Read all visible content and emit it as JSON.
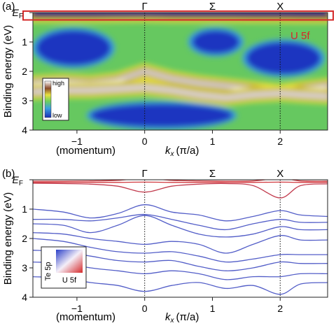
{
  "chart_data": [
    {
      "type": "heatmap",
      "panel_label": "(a)",
      "title": "",
      "xlabel_prefix": "(momentum)",
      "xlabel": "k",
      "xlabel_sub": "x",
      "xlabel_unit": "(π/a)",
      "ylabel": "Binding energy (eV)",
      "xlim": [
        -1.65,
        2.7
      ],
      "ylim": [
        4,
        0
      ],
      "xticks": [
        -1,
        0,
        1,
        2
      ],
      "xtick_labels": [
        "−1",
        "0",
        "1",
        "2"
      ],
      "yticks": [
        0,
        1,
        2,
        3,
        4
      ],
      "ytick_labels": [
        "E_F",
        "1",
        "2",
        "3",
        "4"
      ],
      "high_symbol_points": [
        {
          "label": "Γ",
          "x": 0,
          "dotted_line": true
        },
        {
          "label": "Σ",
          "x": 1,
          "dotted_line": false
        },
        {
          "label": "X",
          "x": 2,
          "dotted_line": true
        }
      ],
      "colorbar": {
        "top_label": "high",
        "bottom_label": "low",
        "placement": "lower-left"
      },
      "annotation": {
        "text": "U 5f",
        "color": "#d42a2a",
        "box_energy_range": [
          -0.05,
          0.25
        ],
        "placement": "right"
      },
      "grid": false,
      "intensity_bands": [
        {
          "name": "near-EF flat band",
          "x": [
            -1.65,
            -1.2,
            -0.8,
            -0.4,
            0,
            0.4,
            0.8,
            1.2,
            1.6,
            2.0,
            2.3,
            2.7
          ],
          "y": [
            0.08,
            0.08,
            0.08,
            0.07,
            0.06,
            0.08,
            0.08,
            0.08,
            0.09,
            0.09,
            0.1,
            0.1
          ],
          "intensity": 0.78
        },
        {
          "name": "Te 5p upper band",
          "x": [
            -1.65,
            -1.2,
            -0.8,
            -0.4,
            0,
            0.4,
            0.8,
            1.2,
            1.6,
            2.0,
            2.3,
            2.7
          ],
          "y": [
            2.4,
            2.35,
            2.4,
            2.3,
            2.0,
            2.25,
            2.4,
            2.5,
            2.6,
            2.7,
            2.6,
            2.5
          ],
          "intensity": 0.85
        },
        {
          "name": "Te 5p lower band",
          "x": [
            -1.65,
            -1.2,
            -0.8,
            -0.4,
            0,
            0.4,
            0.8,
            1.2,
            1.6,
            2.0,
            2.3,
            2.7
          ],
          "y": [
            2.7,
            2.65,
            2.65,
            2.6,
            2.55,
            2.65,
            2.8,
            2.9,
            2.8,
            2.75,
            2.8,
            2.85
          ],
          "intensity": 1.0
        }
      ],
      "low_intensity_regions": [
        {
          "x": [
            -1.6,
            -0.5
          ],
          "y": [
            0.6,
            1.8
          ]
        },
        {
          "x": [
            0.7,
            1.4
          ],
          "y": [
            0.6,
            1.4
          ]
        },
        {
          "x": [
            1.5,
            2.6
          ],
          "y": [
            1.0,
            2.1
          ]
        },
        {
          "x": [
            -0.8,
            1.3
          ],
          "y": [
            3.1,
            3.9
          ]
        }
      ]
    },
    {
      "type": "line",
      "panel_label": "(b)",
      "title": "",
      "xlabel_prefix": "(momentum)",
      "xlabel": "k",
      "xlabel_sub": "x",
      "xlabel_unit": "(π/a)",
      "ylabel": "Binding energy (eV)",
      "xlim": [
        -1.65,
        2.7
      ],
      "ylim": [
        4,
        0
      ],
      "xticks": [
        -1,
        0,
        1,
        2
      ],
      "xtick_labels": [
        "−1",
        "0",
        "1",
        "2"
      ],
      "yticks": [
        0,
        1,
        2,
        3,
        4
      ],
      "ytick_labels": [
        "E_F",
        "1",
        "2",
        "3",
        "4"
      ],
      "high_symbol_points": [
        {
          "label": "Γ",
          "x": 0,
          "dotted_line": true
        },
        {
          "label": "Σ",
          "x": 1,
          "dotted_line": false
        },
        {
          "label": "X",
          "x": 2,
          "dotted_line": true
        }
      ],
      "legend": {
        "y_axis_label": "Te 5p",
        "x_axis_label": "U 5f",
        "placement": "lower-left",
        "colors": [
          "#3a5ad6",
          "#d62a2a"
        ]
      },
      "grid": false,
      "x": [
        -1.65,
        -1.2,
        -0.8,
        -0.4,
        0,
        0.4,
        0.8,
        1.2,
        1.6,
        2.0,
        2.3,
        2.7
      ],
      "series": [
        {
          "u5f_weight": 0.95,
          "y": [
            0.05,
            0.05,
            0.04,
            0.02,
            -0.05,
            0.02,
            0.04,
            0.05,
            0.04,
            -0.05,
            0.04,
            0.05
          ]
        },
        {
          "u5f_weight": 0.95,
          "y": [
            0.09,
            0.09,
            0.09,
            0.09,
            0.08,
            0.09,
            0.09,
            0.09,
            0.09,
            0.08,
            0.09,
            0.09
          ]
        },
        {
          "u5f_weight": 0.85,
          "y": [
            0.12,
            0.13,
            0.15,
            0.22,
            0.42,
            0.22,
            0.15,
            0.13,
            0.2,
            0.62,
            0.2,
            0.14
          ]
        },
        {
          "u5f_weight": 0.1,
          "y": [
            1.0,
            1.1,
            1.3,
            1.15,
            0.85,
            1.1,
            1.2,
            1.4,
            1.25,
            1.05,
            1.2,
            1.25
          ]
        },
        {
          "u5f_weight": 0.1,
          "y": [
            1.35,
            1.35,
            1.4,
            1.3,
            1.18,
            1.35,
            1.55,
            1.7,
            1.5,
            1.35,
            1.45,
            1.45
          ]
        },
        {
          "u5f_weight": 0.1,
          "y": [
            1.5,
            1.55,
            1.8,
            1.55,
            1.22,
            1.55,
            1.85,
            1.95,
            1.85,
            1.6,
            1.7,
            1.7
          ]
        },
        {
          "u5f_weight": 0.1,
          "y": [
            1.8,
            1.85,
            2.0,
            2.1,
            2.2,
            2.1,
            2.2,
            2.5,
            2.2,
            1.9,
            2.05,
            2.05
          ]
        },
        {
          "u5f_weight": 0.1,
          "y": [
            2.0,
            2.1,
            2.3,
            2.45,
            2.5,
            2.45,
            2.6,
            2.8,
            2.7,
            2.55,
            2.55,
            2.55
          ]
        },
        {
          "u5f_weight": 0.1,
          "y": [
            2.4,
            2.45,
            2.6,
            2.75,
            2.8,
            2.75,
            2.95,
            3.1,
            3.0,
            2.8,
            2.85,
            2.85
          ]
        },
        {
          "u5f_weight": 0.1,
          "y": [
            2.8,
            2.85,
            3.0,
            3.1,
            3.2,
            3.1,
            3.2,
            3.4,
            3.3,
            3.3,
            3.2,
            3.2
          ]
        },
        {
          "u5f_weight": 0.1,
          "y": [
            3.3,
            3.35,
            3.5,
            3.6,
            3.8,
            3.6,
            3.5,
            3.7,
            3.6,
            3.9,
            3.55,
            3.5
          ]
        }
      ]
    }
  ]
}
